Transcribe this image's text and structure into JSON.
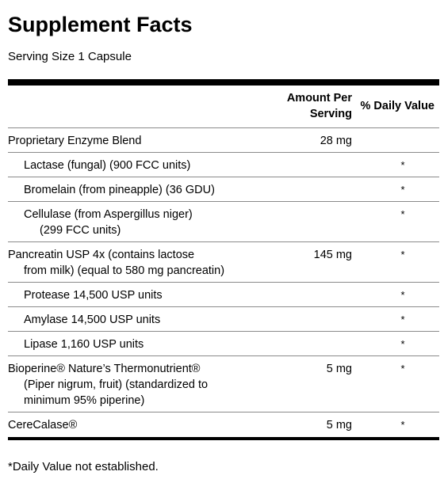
{
  "panel": {
    "title": "Supplement Facts",
    "serving_size": "Serving Size 1 Capsule",
    "header": {
      "amount_line1": "Amount Per",
      "amount_line2": "Serving",
      "daily_value": "% Daily Value"
    },
    "rows": [
      {
        "name": "Proprietary Enzyme Blend",
        "amount": "28 mg",
        "dv": ""
      },
      {
        "name": "Lactase (fungal) (900 FCC units)",
        "amount": "",
        "dv": "*"
      },
      {
        "name": "Bromelain (from pineapple) (36 GDU)",
        "amount": "",
        "dv": "*"
      },
      {
        "name_line1": "Cellulase (from Aspergillus niger)",
        "name_line2": "(299 FCC units)",
        "amount": "",
        "dv": "*"
      },
      {
        "name_line1": "Pancreatin USP 4x (contains lactose",
        "name_line2": "from milk) (equal to 580 mg pancreatin)",
        "amount": "145 mg",
        "dv": "*"
      },
      {
        "name": "Protease 14,500 USP units",
        "amount": "",
        "dv": "*"
      },
      {
        "name": "Amylase 14,500 USP units",
        "amount": "",
        "dv": "*"
      },
      {
        "name": "Lipase 1,160 USP units",
        "amount": "",
        "dv": "*"
      },
      {
        "name_line1": "Bioperine® Nature’s Thermonutrient®",
        "name_line2": "(Piper nigrum, fruit) (standardized to",
        "name_line3": "minimum 95% piperine)",
        "amount": "5 mg",
        "dv": "*"
      },
      {
        "name": "CereCalase®",
        "amount": "5 mg",
        "dv": "*"
      }
    ],
    "footnote": "*Daily Value not established."
  }
}
